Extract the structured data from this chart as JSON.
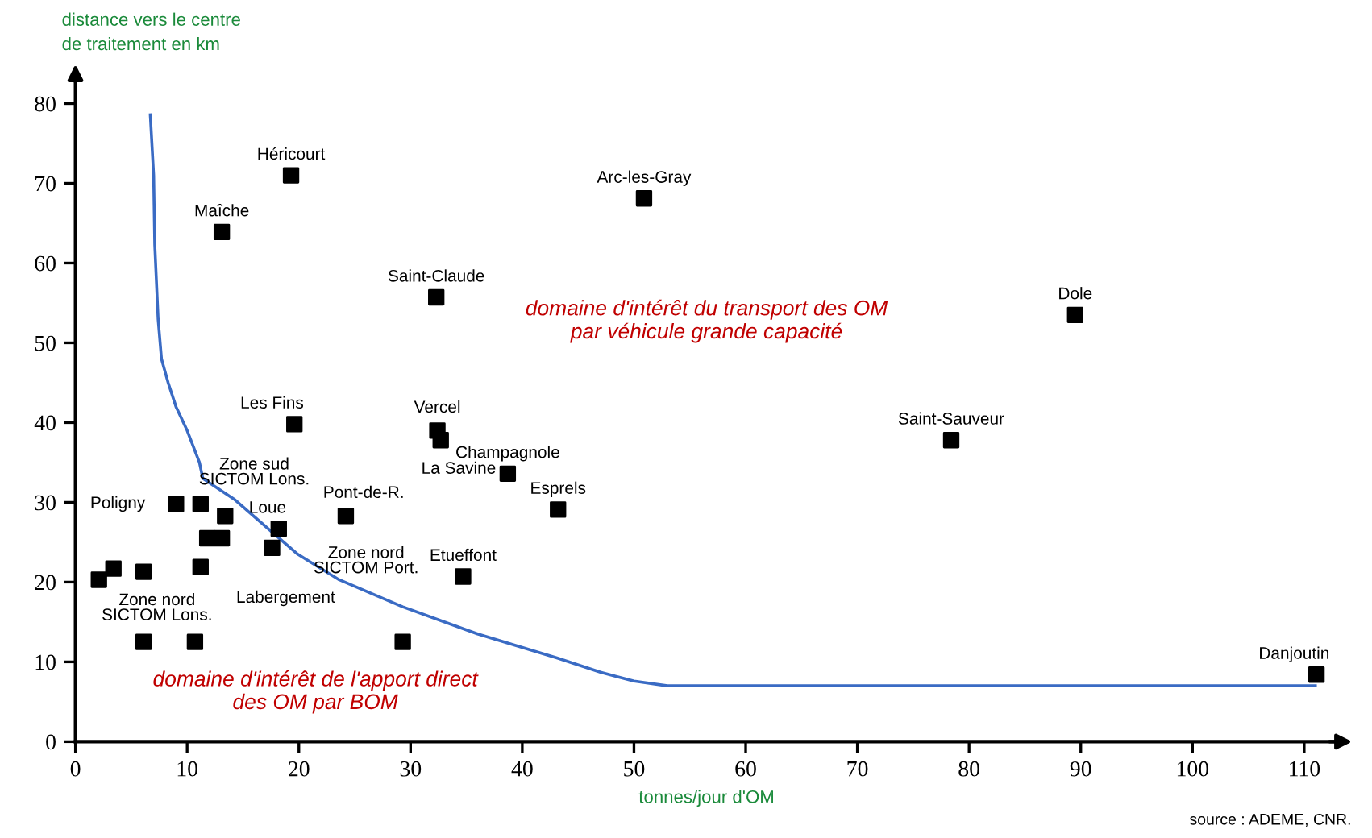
{
  "chart_data": {
    "type": "line",
    "xlabel": "tonnes/jour d'OM",
    "ylabel": "distance vers le centre\nde traitement en km",
    "xlim": [
      0,
      113
    ],
    "ylim": [
      0,
      83
    ],
    "xticks": [
      0,
      10,
      20,
      30,
      40,
      50,
      60,
      70,
      80,
      90,
      100,
      110
    ],
    "yticks": [
      0,
      10,
      20,
      30,
      40,
      50,
      60,
      70,
      80
    ],
    "grid": false,
    "legend": false,
    "series": [
      {
        "type": "scatter",
        "marker": "square",
        "color": "#000000",
        "x": [
          19.3,
          13.1,
          50.9,
          32.3,
          89.5,
          19.6,
          32.4,
          32.7,
          38.7,
          43.2,
          78.4,
          24.2,
          18.2,
          17.6,
          34.7,
          29.3,
          9.0,
          11.2,
          13.4,
          11.8,
          13.1,
          11.2,
          6.1,
          3.4,
          2.1,
          6.1,
          10.7,
          111.1
        ],
        "values": [
          71.0,
          63.9,
          68.1,
          55.7,
          53.5,
          39.8,
          39.0,
          37.8,
          33.6,
          29.1,
          37.8,
          28.3,
          26.7,
          24.3,
          20.7,
          12.5,
          29.8,
          29.8,
          28.3,
          25.5,
          25.5,
          21.9,
          21.3,
          21.7,
          20.3,
          12.5,
          12.5,
          8.4
        ]
      },
      {
        "color": "#3a6bc4",
        "line_style": "solid",
        "marker": "none",
        "x": [
          6.7,
          7.0,
          7.1,
          7.4,
          7.7,
          8.3,
          9.0,
          10.0,
          11.1,
          11.4,
          14.2,
          17.0,
          19.9,
          23.6,
          29.3,
          36.0,
          43.1,
          47.0,
          50.0,
          53.0,
          111.0
        ],
        "values": [
          78.6,
          71.0,
          62.3,
          53.0,
          48.0,
          45.0,
          42.0,
          39.0,
          35.0,
          33.0,
          30.4,
          27.0,
          23.5,
          20.3,
          16.9,
          13.5,
          10.5,
          8.7,
          7.6,
          7.0,
          7.0
        ]
      }
    ],
    "annotations": [
      {
        "text": "Héricourt",
        "x": 19.3,
        "y": 71.0
      },
      {
        "text": "Maîche",
        "x": 13.1,
        "y": 63.9
      },
      {
        "text": "Arc-les-Gray",
        "x": 50.9,
        "y": 68.1
      },
      {
        "text": "Saint-Claude",
        "x": 32.3,
        "y": 55.7
      },
      {
        "text": "Dole",
        "x": 89.5,
        "y": 53.5
      },
      {
        "text": "Les Fins",
        "x": 19.6,
        "y": 39.8
      },
      {
        "text": "Vercel",
        "x": 32.4,
        "y": 39.0
      },
      {
        "text": "La Savine",
        "x": 32.7,
        "y": 37.8
      },
      {
        "text": "Champagnole",
        "x": 38.7,
        "y": 33.6
      },
      {
        "text": "Esprels",
        "x": 43.2,
        "y": 29.1
      },
      {
        "text": "Saint-Sauveur",
        "x": 78.4,
        "y": 37.8
      },
      {
        "text": "Pont-de-R.",
        "x": 24.2,
        "y": 28.3
      },
      {
        "text": "Loue",
        "x": 18.2,
        "y": 26.7
      },
      {
        "text": "Zone nord\nSICTOM Port.",
        "x": 17.6,
        "y": 24.3
      },
      {
        "text": "Etueffont",
        "x": 34.7,
        "y": 20.7
      },
      {
        "text": "Poligny",
        "x": 9.0,
        "y": 29.8
      },
      {
        "text": "Zone sud\nSICTOM Lons.",
        "x": 11.2,
        "y": 29.8
      },
      {
        "text": "Labergement",
        "x": 11.2,
        "y": 21.9
      },
      {
        "text": "Zone nord\nSICTOM Lons.",
        "x": 6.1,
        "y": 12.5
      },
      {
        "text": "Danjoutin",
        "x": 111.1,
        "y": 8.4
      },
      "domaine d'intérêt du transport des OM\npar véhicule grande capacité",
      "domaine d'intérêt de l'apport direct\ndes OM par BOM",
      "source : ADEME, CNR."
    ]
  }
}
